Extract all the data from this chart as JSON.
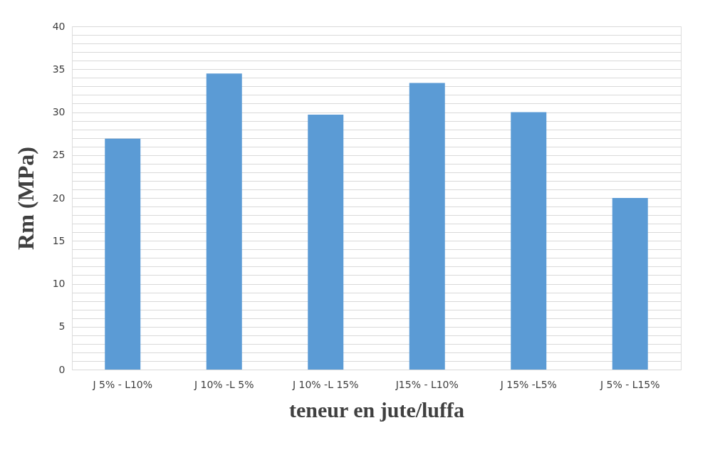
{
  "chart_data": {
    "type": "bar",
    "categories": [
      "J 5% - L10%",
      "J 10% -L 5%",
      "J 10% -L 15%",
      "J15% - L10%",
      "J 15% -L5%",
      "J 5% - L15%"
    ],
    "values": [
      26.9,
      34.5,
      29.7,
      33.4,
      30.0,
      20.0
    ],
    "color": "#5b9bd5",
    "xlabel": "teneur en jute/luffa",
    "ylabel": "Rm (MPa)",
    "ylim": [
      0,
      40
    ],
    "yticks": [
      0,
      {
        "value": 1,
        "label": null
      },
      {
        "value": 2,
        "label": null
      },
      {
        "value": 3,
        "label": null
      },
      {
        "value": 4,
        "label": null
      },
      5,
      {
        "value": 6,
        "label": null
      },
      {
        "value": 7,
        "label": null
      },
      {
        "value": 8,
        "label": null
      },
      {
        "value": 9,
        "label": null
      },
      10,
      {
        "value": 11,
        "label": null
      },
      {
        "value": 12,
        "label": null
      },
      {
        "value": 13,
        "label": null
      },
      {
        "value": 14,
        "label": null
      },
      15,
      {
        "value": 16,
        "label": null
      },
      {
        "value": 17,
        "label": null
      },
      {
        "value": 18,
        "label": null
      },
      {
        "value": 19,
        "label": null
      },
      20,
      {
        "value": 21,
        "label": null
      },
      {
        "value": 22,
        "label": null
      },
      {
        "value": 23,
        "label": null
      },
      {
        "value": 24,
        "label": null
      },
      25,
      {
        "value": 26,
        "label": null
      },
      {
        "value": 27,
        "label": null
      },
      {
        "value": 28,
        "label": null
      },
      {
        "value": 29,
        "label": null
      },
      30,
      {
        "value": 31,
        "label": null
      },
      {
        "value": 32,
        "label": null
      },
      {
        "value": 33,
        "label": null
      },
      {
        "value": 34,
        "label": null
      },
      35,
      {
        "value": 36,
        "label": null
      },
      {
        "value": 37,
        "label": null
      },
      {
        "value": 38,
        "label": null
      },
      {
        "value": 39,
        "label": null
      },
      40
    ],
    "grid": "y"
  }
}
